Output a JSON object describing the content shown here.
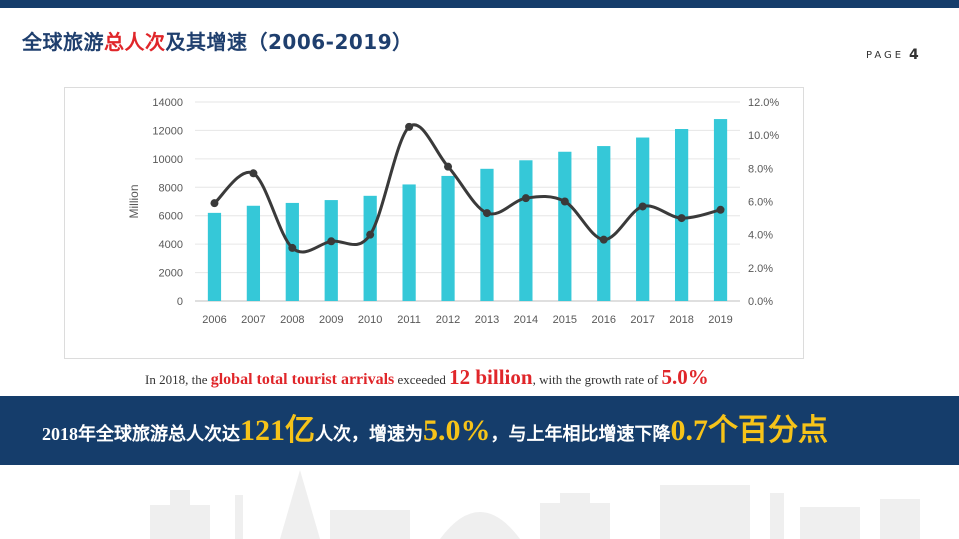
{
  "header": {
    "title_part1": "全球旅游",
    "title_accent": "总人次",
    "title_part2": "及其增速（2006-2019）",
    "page_label": "PAGE",
    "page_number": "4"
  },
  "colors": {
    "navy": "#153d6b",
    "bar": "#35c8d8",
    "line": "#3a3a3a",
    "accent_red": "#e0262a",
    "highlight_yellow": "#f6c319"
  },
  "chart_data": {
    "type": "bar",
    "categories": [
      "2006",
      "2007",
      "2008",
      "2009",
      "2010",
      "2011",
      "2012",
      "2013",
      "2014",
      "2015",
      "2016",
      "2017",
      "2018",
      "2019"
    ],
    "series": [
      {
        "type": "bar",
        "axis": "left",
        "values": [
          6200,
          6700,
          6900,
          7100,
          7400,
          8200,
          8800,
          9300,
          9900,
          10500,
          10900,
          11500,
          12100,
          12800
        ]
      },
      {
        "type": "line",
        "axis": "right",
        "values": [
          5.9,
          7.7,
          3.2,
          3.6,
          4.0,
          10.5,
          8.1,
          5.3,
          6.2,
          6.0,
          3.7,
          5.7,
          5.0,
          5.5
        ]
      }
    ],
    "ylabel": "Million",
    "ylim": [
      0,
      14000
    ],
    "y_ticks": [
      "0",
      "2000",
      "4000",
      "6000",
      "8000",
      "10000",
      "12000",
      "14000"
    ],
    "y2lim": [
      0,
      12
    ],
    "y2_ticks": [
      "0.0%",
      "2.0%",
      "4.0%",
      "6.0%",
      "8.0%",
      "10.0%",
      "12.0%"
    ],
    "grid": true,
    "legend": "none"
  },
  "caption": {
    "part1": "In 2018, the ",
    "highlight1": "global total tourist arrivals",
    "part2": " exceeded ",
    "highlight2": "12 billion",
    "part3": ", with the growth rate of ",
    "highlight3": "5.0%"
  },
  "banner": {
    "part1": "2018年全球旅游总人次达",
    "hl1": "121亿",
    "part2": "人次，增速为",
    "hl2": "5.0%",
    "part3": "，与上年相比增速下降",
    "hl3": "0.7",
    "part4": "个百分点"
  }
}
